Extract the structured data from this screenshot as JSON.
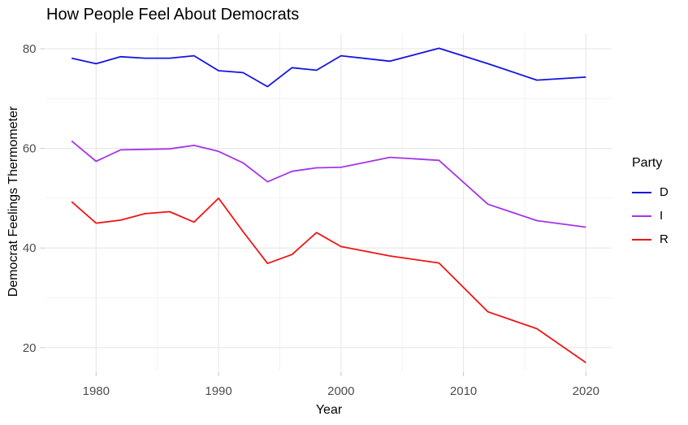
{
  "chart_data": {
    "type": "line",
    "title": "How People Feel About Democrats",
    "xlabel": "Year",
    "ylabel": "Democrat Feelings Thermometer",
    "legend_title": "Party",
    "legend_position": "right",
    "background": "#FFFFFF",
    "grid": {
      "major_color": "#E7E7E7",
      "minor_color": "#F2F2F2",
      "tick_color": "#C9C9C9",
      "axis_text_color": "#4D4D4D"
    },
    "x_ticks": [
      1980,
      1990,
      2000,
      2010,
      2020
    ],
    "y_ticks": [
      20,
      40,
      60,
      80
    ],
    "x_range": [
      1975.9,
      2022.1
    ],
    "y_range": [
      15.4,
      83.1
    ],
    "x": [
      1978,
      1980,
      1982,
      1984,
      1986,
      1988,
      1990,
      1992,
      1994,
      1996,
      1998,
      2000,
      2004,
      2008,
      2012,
      2016,
      2020
    ],
    "series": [
      {
        "name": "D",
        "color": "#1414E0",
        "values": [
          78.1,
          77.0,
          78.4,
          78.1,
          78.1,
          78.6,
          75.6,
          75.2,
          72.4,
          76.2,
          75.7,
          78.6,
          77.5,
          80.1,
          77.0,
          73.7,
          74.3
        ]
      },
      {
        "name": "I",
        "color": "#A435E8",
        "values": [
          61.5,
          57.4,
          59.7,
          59.8,
          59.9,
          60.6,
          59.4,
          57.1,
          53.3,
          55.4,
          56.1,
          56.2,
          58.2,
          57.6,
          48.8,
          45.5,
          44.2
        ]
      },
      {
        "name": "R",
        "color": "#F01414",
        "values": [
          49.3,
          45.0,
          45.6,
          46.9,
          47.3,
          45.2,
          50.0,
          43.3,
          36.9,
          38.7,
          43.1,
          40.3,
          38.4,
          37.0,
          27.2,
          23.8,
          17.0
        ]
      }
    ]
  }
}
